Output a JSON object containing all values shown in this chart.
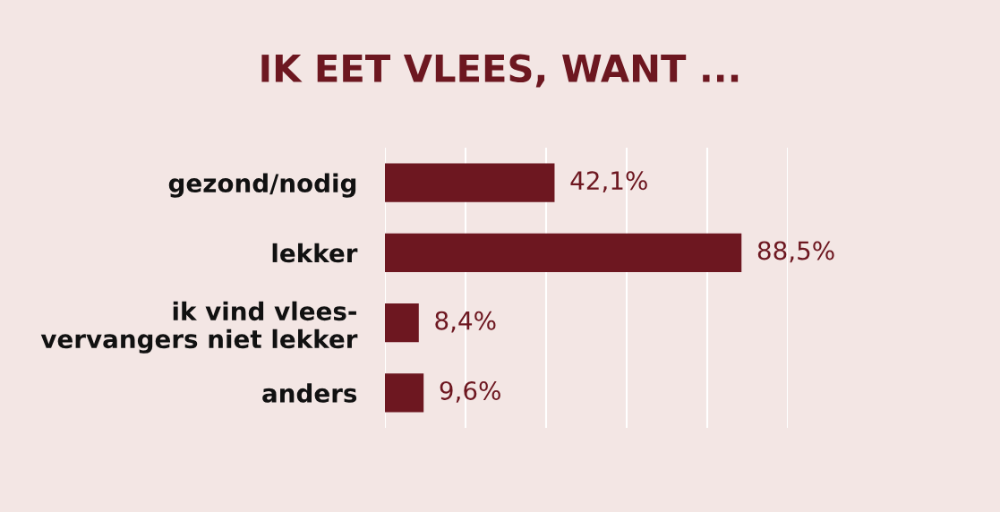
{
  "chart_data": {
    "type": "bar",
    "orientation": "horizontal",
    "title": "IK EET VLEES, WANT ...",
    "categories": [
      "gezond/nodig",
      "lekker",
      "ik vind vlees-\nvervangers niet lekker",
      "anders"
    ],
    "values": [
      42.1,
      88.5,
      8.4,
      9.6
    ],
    "color": "#6d1720",
    "value_labels": [
      "42,1%",
      "88,5%",
      "8,4%",
      "9,6%"
    ],
    "xlim": [
      0,
      100
    ],
    "xticks": [
      {
        "value": 0,
        "label": null
      },
      {
        "value": 20,
        "label": null
      },
      {
        "value": 40,
        "label": null
      },
      {
        "value": 60,
        "label": null
      },
      {
        "value": 80,
        "label": null
      },
      {
        "value": 100,
        "label": null
      }
    ],
    "grid": "x",
    "tick_labels": "y"
  }
}
